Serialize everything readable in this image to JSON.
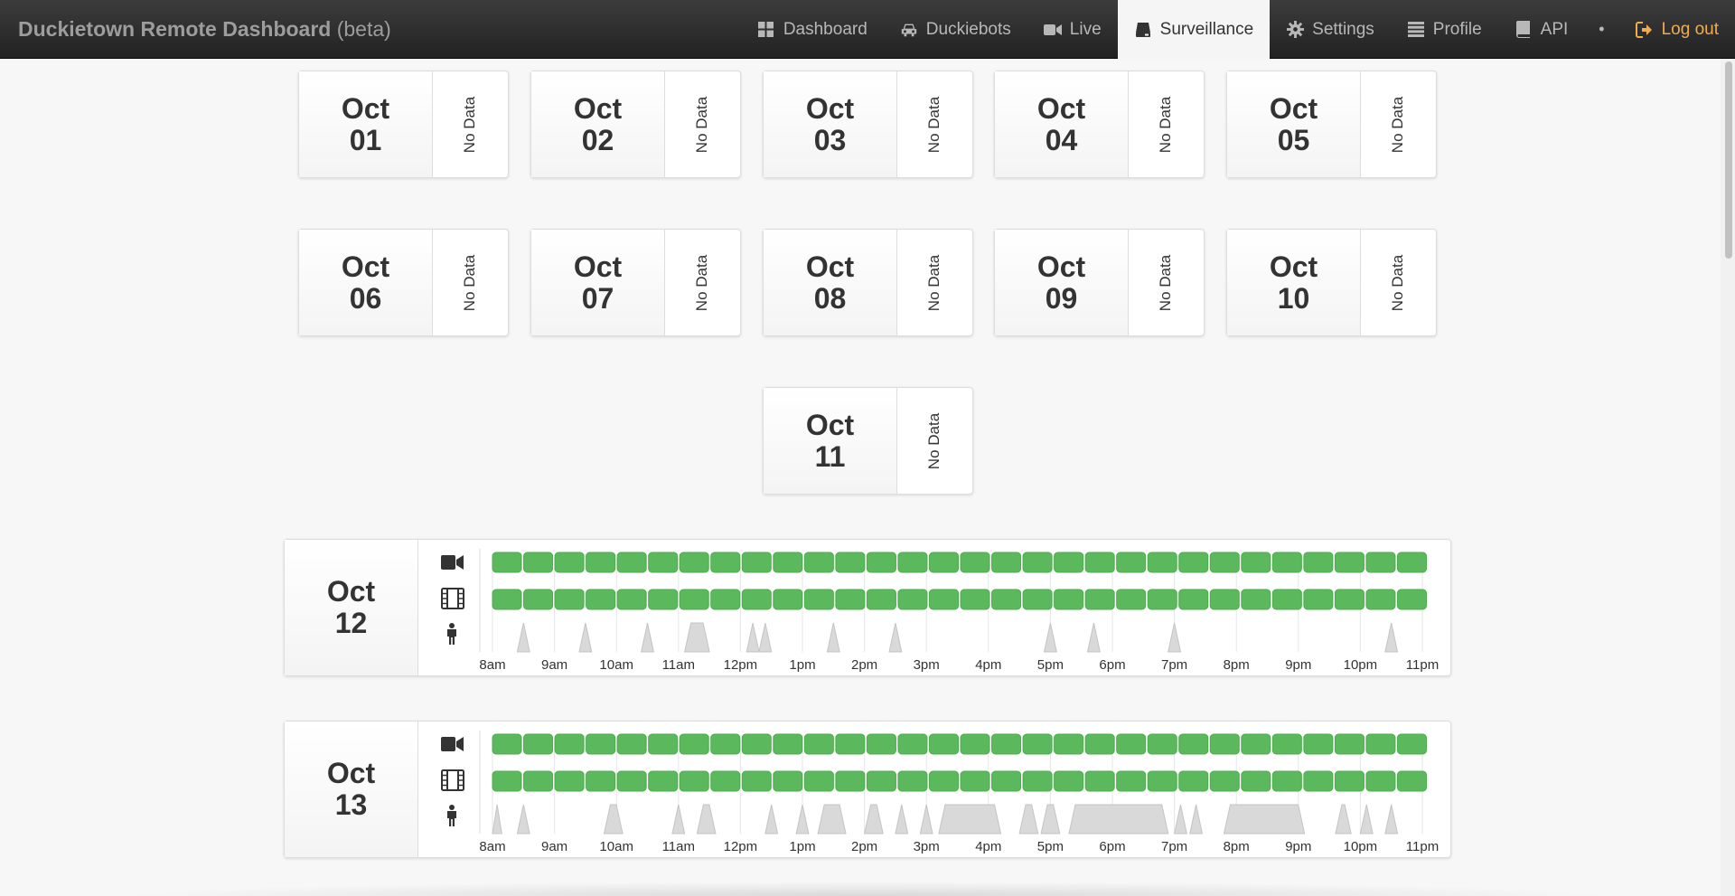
{
  "navbar": {
    "brand": "Duckietown Remote Dashboard",
    "beta": "(beta)",
    "items": [
      {
        "label": "Dashboard",
        "icon": "dashboard-icon",
        "active": false
      },
      {
        "label": "Duckiebots",
        "icon": "car-icon",
        "active": false
      },
      {
        "label": "Live",
        "icon": "video-camera-icon",
        "active": false
      },
      {
        "label": "Surveillance",
        "icon": "hard-drive-icon",
        "active": true
      },
      {
        "label": "Settings",
        "icon": "gear-icon",
        "active": false
      },
      {
        "label": "Profile",
        "icon": "list-icon",
        "active": false
      },
      {
        "label": "API",
        "icon": "book-icon",
        "active": false
      },
      {
        "label": "•",
        "icon": "",
        "active": false
      },
      {
        "label": "Log out",
        "icon": "logout-icon",
        "active": false
      }
    ],
    "colors": {
      "logout": "#f0ad4e",
      "active_bg": "#f5f5f5"
    }
  },
  "days": [
    {
      "month": "Oct",
      "day": "01",
      "status": "No Data"
    },
    {
      "month": "Oct",
      "day": "02",
      "status": "No Data"
    },
    {
      "month": "Oct",
      "day": "03",
      "status": "No Data"
    },
    {
      "month": "Oct",
      "day": "04",
      "status": "No Data"
    },
    {
      "month": "Oct",
      "day": "05",
      "status": "No Data"
    },
    {
      "month": "Oct",
      "day": "06",
      "status": "No Data"
    },
    {
      "month": "Oct",
      "day": "07",
      "status": "No Data"
    },
    {
      "month": "Oct",
      "day": "08",
      "status": "No Data"
    },
    {
      "month": "Oct",
      "day": "09",
      "status": "No Data"
    },
    {
      "month": "Oct",
      "day": "10",
      "status": "No Data"
    },
    {
      "month": "Oct",
      "day": "11",
      "status": "No Data"
    }
  ],
  "timelines": [
    {
      "month": "Oct",
      "day": "12",
      "hours": [
        "8am",
        "9am",
        "10am",
        "11am",
        "12pm",
        "1pm",
        "2pm",
        "3pm",
        "4pm",
        "5pm",
        "6pm",
        "7pm",
        "8pm",
        "9pm",
        "10pm",
        "11pm"
      ],
      "recording_segments": 30,
      "video_segments": 30,
      "activity": [
        [
          8.4,
          8.6
        ],
        [
          9.4,
          9.6
        ],
        [
          10.4,
          10.6
        ],
        [
          11.1,
          11.5
        ],
        [
          12.1,
          12.3
        ],
        [
          12.3,
          12.5
        ],
        [
          13.4,
          13.6
        ],
        [
          14.4,
          14.6
        ],
        [
          16.9,
          17.1
        ],
        [
          17.6,
          17.8
        ],
        [
          18.9,
          19.1
        ],
        [
          22.4,
          22.6
        ]
      ]
    },
    {
      "month": "Oct",
      "day": "13",
      "hours": [
        "8am",
        "9am",
        "10am",
        "11am",
        "12pm",
        "1pm",
        "2pm",
        "3pm",
        "4pm",
        "5pm",
        "6pm",
        "7pm",
        "8pm",
        "9pm",
        "10pm",
        "11pm"
      ],
      "recording_segments": 30,
      "video_segments": 30,
      "activity": [
        [
          8.0,
          8.15
        ],
        [
          8.4,
          8.6
        ],
        [
          9.8,
          10.1
        ],
        [
          10.9,
          11.1
        ],
        [
          11.3,
          11.6
        ],
        [
          12.4,
          12.6
        ],
        [
          12.9,
          13.1
        ],
        [
          13.25,
          13.7
        ],
        [
          14.0,
          14.3
        ],
        [
          14.5,
          14.7
        ],
        [
          14.9,
          15.1
        ],
        [
          15.2,
          16.2
        ],
        [
          16.5,
          16.8
        ],
        [
          16.85,
          17.15
        ],
        [
          17.3,
          18.9
        ],
        [
          19.0,
          19.2
        ],
        [
          19.25,
          19.45
        ],
        [
          19.8,
          21.1
        ],
        [
          21.6,
          21.85
        ],
        [
          22.0,
          22.2
        ],
        [
          22.4,
          22.6
        ]
      ]
    }
  ],
  "legend_icons": [
    "video-camera-icon",
    "film-icon",
    "person-icon"
  ],
  "colors": {
    "segment": "#5cb85c",
    "segment_border": "#4cae4c",
    "activity": "#d9d9d9",
    "activity_stroke": "#c4c4c4"
  }
}
